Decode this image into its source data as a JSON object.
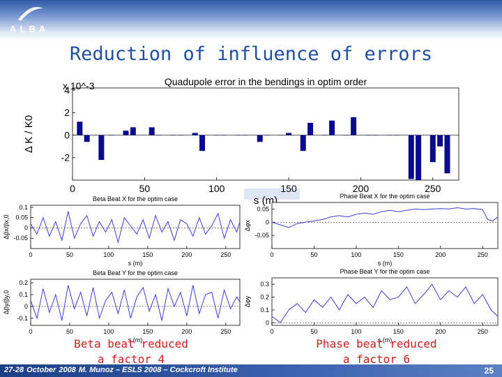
{
  "slide": {
    "logo_text": "ALBA",
    "title": "Reduction of influence of errors",
    "captions": {
      "left": "Beta beat reduced\na factor 4",
      "right": "Phase beat reduced\na factor 6"
    },
    "footer": {
      "date_a": "27-28",
      "date_b": "October",
      "date_c": "2008",
      "text": "M. Munoz – ESLS 2008 – Cockcroft Institute",
      "page": "25"
    },
    "colors": {
      "title": "#1f4fa0",
      "caption": "#d11b1b",
      "bar": "#0a0a8c",
      "line": "#3b3bd6"
    }
  },
  "chart_data": [
    {
      "type": "bar",
      "title": "Quadupole error in the bendings in optim order",
      "xlabel": "s (m)",
      "ylabel": "Δ K / K0",
      "y_exponent": "x 10^-3",
      "xlim": [
        0,
        268
      ],
      "ylim": [
        -4,
        4.2
      ],
      "xticks": [
        0,
        50,
        100,
        150,
        200,
        250
      ],
      "yticks": [
        -2,
        0,
        2,
        4
      ],
      "x": [
        5,
        10,
        20,
        27,
        37,
        42,
        55,
        60,
        70,
        75,
        85,
        90,
        100,
        105,
        115,
        120,
        130,
        135,
        145,
        150,
        160,
        165,
        175,
        180,
        190,
        195,
        205,
        210,
        220,
        225,
        235,
        240,
        250,
        255,
        260
      ],
      "values": [
        1.2,
        -0.6,
        -2.2,
        0,
        0.4,
        0.7,
        0.7,
        0,
        0,
        0,
        0.2,
        -1.4,
        0,
        0,
        0,
        0,
        -0.6,
        0,
        0,
        0.2,
        -1.4,
        1.1,
        0,
        1.3,
        0,
        1.6,
        0,
        0,
        0,
        0,
        -3.9,
        -4.0,
        -2.4,
        -1.0,
        -3.4
      ]
    },
    {
      "type": "line",
      "title": "Beta Beat X for the optim case",
      "xlabel": "s (m)",
      "ylabel": "Δβx/βx,0",
      "xlim": [
        0,
        268
      ],
      "ylim": [
        -0.1,
        0.11
      ],
      "xticks": [
        0,
        50,
        100,
        150,
        200,
        250
      ],
      "yticks": [
        -0.05,
        0,
        0.05,
        0.1
      ],
      "series": [
        {
          "x": [
            0,
            8,
            16,
            24,
            32,
            40,
            48,
            56,
            64,
            72,
            80,
            88,
            96,
            104,
            112,
            120,
            128,
            136,
            144,
            152,
            160,
            168,
            176,
            184,
            192,
            200,
            208,
            216,
            224,
            232,
            240,
            248,
            256,
            264,
            268
          ],
          "y": [
            0.02,
            -0.03,
            0.05,
            -0.04,
            0.03,
            -0.06,
            0.08,
            -0.05,
            0.02,
            0.06,
            -0.04,
            0.03,
            -0.02,
            0.04,
            -0.07,
            0.05,
            0.01,
            -0.03,
            0.04,
            -0.05,
            0.06,
            -0.02,
            0.03,
            -0.06,
            0.04,
            0.02,
            -0.04,
            0.05,
            -0.03,
            0.01,
            0.07,
            -0.05,
            0.04,
            -0.02,
            0.03
          ]
        }
      ]
    },
    {
      "type": "line",
      "title": "Phase Beat X for the optim case",
      "xlabel": "s (m)",
      "ylabel": "Δφx",
      "xlim": [
        0,
        268
      ],
      "ylim": [
        -0.1,
        0.075
      ],
      "xticks": [
        0,
        50,
        100,
        150,
        200,
        250
      ],
      "yticks": [
        -0.05,
        0,
        0.05
      ],
      "series": [
        {
          "x": [
            0,
            10,
            20,
            30,
            40,
            50,
            60,
            70,
            80,
            90,
            100,
            110,
            120,
            130,
            140,
            150,
            160,
            170,
            180,
            190,
            200,
            210,
            220,
            230,
            240,
            250,
            256,
            262,
            268
          ],
          "y": [
            0.0,
            -0.01,
            -0.02,
            -0.005,
            0.0,
            0.005,
            0.01,
            0.02,
            0.025,
            0.02,
            0.03,
            0.035,
            0.03,
            0.04,
            0.045,
            0.04,
            0.045,
            0.05,
            0.048,
            0.05,
            0.052,
            0.05,
            0.055,
            0.05,
            0.052,
            0.048,
            0.01,
            0.005,
            0.02
          ]
        }
      ]
    },
    {
      "type": "line",
      "title": "Beta Beat Y for the optim case",
      "xlabel": "s (m)",
      "ylabel": "Δβy/βy,0",
      "xlim": [
        0,
        268
      ],
      "ylim": [
        -0.16,
        0.23
      ],
      "xticks": [
        0,
        50,
        100,
        150,
        200,
        250
      ],
      "yticks": [
        -0.1,
        0,
        0.1,
        0.2
      ],
      "series": [
        {
          "x": [
            0,
            8,
            16,
            24,
            32,
            40,
            48,
            56,
            64,
            72,
            80,
            88,
            96,
            104,
            112,
            120,
            128,
            136,
            144,
            152,
            160,
            168,
            176,
            184,
            192,
            200,
            208,
            216,
            224,
            232,
            240,
            248,
            256,
            264,
            268
          ],
          "y": [
            0.05,
            -0.1,
            0.15,
            -0.05,
            0.1,
            -0.12,
            0.18,
            -0.02,
            0.12,
            -0.08,
            0.16,
            -0.1,
            0.05,
            0.12,
            -0.06,
            0.14,
            -0.1,
            0.08,
            0.16,
            -0.04,
            0.1,
            -0.12,
            0.15,
            0.0,
            0.12,
            -0.08,
            0.18,
            -0.06,
            0.1,
            0.12,
            -0.1,
            0.14,
            -0.02,
            0.08,
            0.04
          ]
        }
      ]
    },
    {
      "type": "line",
      "title": "Phase Beat Y for the optim case",
      "xlabel": "s (m)",
      "ylabel": "Δφy",
      "xlim": [
        0,
        268
      ],
      "ylim": [
        -0.02,
        0.35
      ],
      "xticks": [
        0,
        50,
        100,
        150,
        200,
        250
      ],
      "yticks": [
        0,
        0.1,
        0.2,
        0.3
      ],
      "series": [
        {
          "x": [
            0,
            10,
            20,
            30,
            40,
            50,
            60,
            70,
            80,
            90,
            100,
            110,
            120,
            130,
            140,
            150,
            160,
            170,
            180,
            190,
            200,
            210,
            220,
            230,
            240,
            250,
            260,
            268
          ],
          "y": [
            0.05,
            0.0,
            0.1,
            0.15,
            0.08,
            0.18,
            0.12,
            0.2,
            0.1,
            0.22,
            0.15,
            0.2,
            0.12,
            0.25,
            0.18,
            0.2,
            0.28,
            0.15,
            0.22,
            0.3,
            0.18,
            0.25,
            0.2,
            0.28,
            0.15,
            0.22,
            0.1,
            0.05
          ]
        }
      ]
    }
  ]
}
